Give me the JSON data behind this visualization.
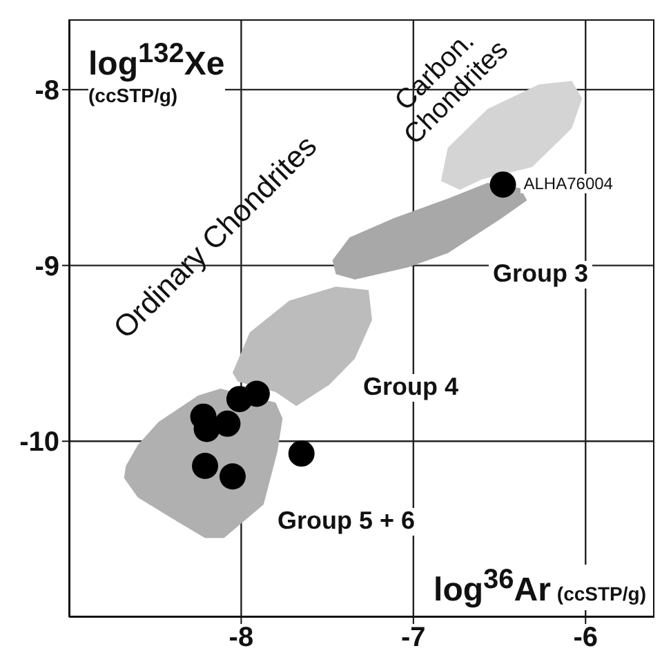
{
  "chart_data": {
    "type": "scatter",
    "xlabel": "log$^{36}$Ar (ccSTP/g)",
    "ylabel": "log$^{132}$Xe (ccSTP/g)",
    "xlim": [
      -9,
      -5.6
    ],
    "ylim": [
      -11,
      -7.6
    ],
    "xticks": [
      -8,
      -7,
      -6
    ],
    "yticks": [
      -10,
      -9,
      -8
    ],
    "grid": true,
    "series": [
      {
        "type": "area",
        "color": "#d4d4d4",
        "x": [
          -6.84,
          -6.8,
          -6.57,
          -6.27,
          -6.08,
          -6.02,
          -6.08,
          -6.31,
          -6.6,
          -6.73
        ],
        "values": [
          -8.52,
          -8.33,
          -8.11,
          -7.97,
          -7.95,
          -8.05,
          -8.22,
          -8.44,
          -8.51,
          -8.57
        ]
      },
      {
        "type": "area",
        "color": "#a8a8a8",
        "x": [
          -7.47,
          -7.37,
          -7.11,
          -6.8,
          -6.57,
          -6.38,
          -6.34,
          -6.5,
          -6.8,
          -7.03,
          -7.34,
          -7.45
        ],
        "values": [
          -8.97,
          -8.84,
          -8.73,
          -8.62,
          -8.53,
          -8.56,
          -8.63,
          -8.74,
          -8.93,
          -9.01,
          -9.08,
          -9.05
        ]
      },
      {
        "type": "area",
        "color": "#bcbcbc",
        "x": [
          -8.05,
          -7.95,
          -7.72,
          -7.45,
          -7.26,
          -7.24,
          -7.34,
          -7.49,
          -7.68,
          -7.8,
          -8.02
        ],
        "values": [
          -9.61,
          -9.38,
          -9.2,
          -9.12,
          -9.14,
          -9.31,
          -9.53,
          -9.68,
          -9.8,
          -9.72,
          -9.66
        ]
      },
      {
        "type": "area",
        "color": "#b0b0b0",
        "x": [
          -8.67,
          -8.6,
          -8.48,
          -8.25,
          -8.12,
          -7.8,
          -7.76,
          -7.79,
          -7.87,
          -8.1,
          -8.21,
          -8.4,
          -8.6,
          -8.68
        ],
        "values": [
          -10.14,
          -10.02,
          -9.89,
          -9.74,
          -9.7,
          -9.78,
          -9.87,
          -10.06,
          -10.36,
          -10.55,
          -10.55,
          -10.44,
          -10.32,
          -10.21
        ]
      },
      {
        "type": "scatter",
        "marker": "circle",
        "color": "#000000",
        "x": [
          -6.48,
          -7.91,
          -8.01,
          -8.22,
          -8.2,
          -8.08,
          -8.21,
          -8.05,
          -7.65
        ],
        "values": [
          -8.54,
          -9.73,
          -9.76,
          -9.86,
          -9.93,
          -9.9,
          -10.14,
          -10.2,
          -10.07
        ]
      }
    ],
    "annotations": [
      {
        "text": "ALHA76004",
        "x": -6.48,
        "y": -8.54
      },
      "Group 3",
      "Group 4",
      "Group 5 + 6",
      "Ordinary Chondrites",
      "Carbon. Chondrites"
    ]
  }
}
